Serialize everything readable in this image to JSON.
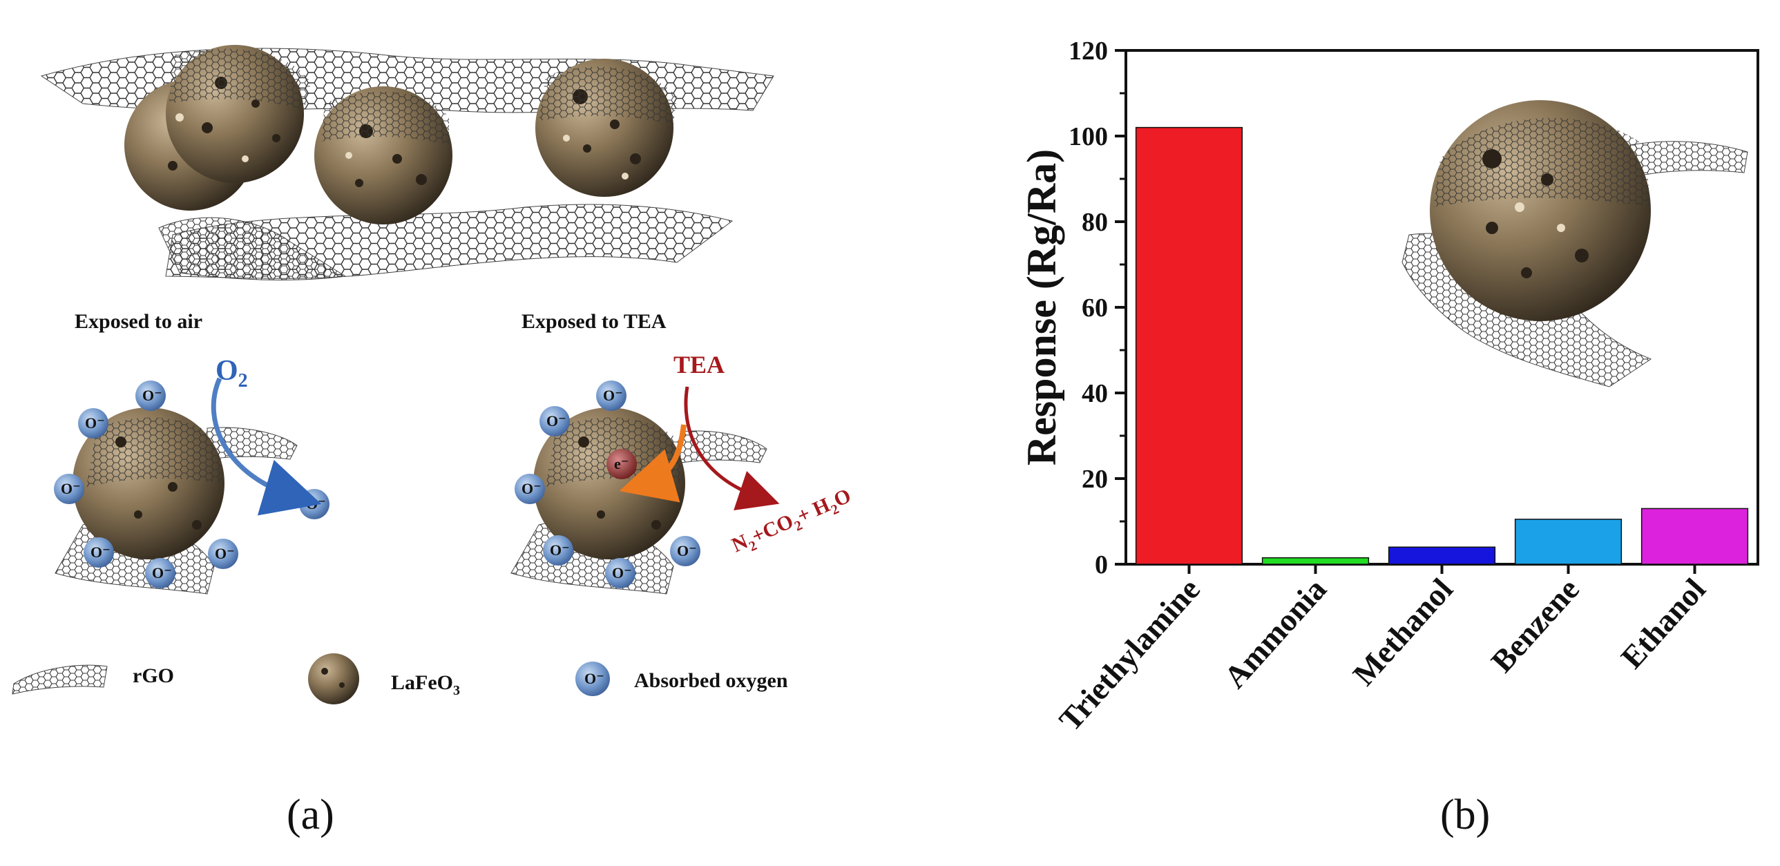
{
  "figure": {
    "panel_a_letter": "(a)",
    "panel_b_letter": "(b)"
  },
  "panel_a": {
    "exposed_air": "Exposed to air",
    "exposed_tea": "Exposed to TEA",
    "o2_label": "O",
    "o2_sub": "2",
    "tea_label": "TEA",
    "product_label": {
      "n": "N",
      "n_sub": "2",
      "plus_co": "+CO",
      "co_sub": "2",
      "plus_h": "+ H",
      "h_sub": "2",
      "o": "O"
    },
    "ion_label": "O⁻",
    "electron_label": "e⁻",
    "legend": {
      "rgo": "rGO",
      "lafeo": "LaFeO",
      "lafeo_sub": "3",
      "oxygen": "Absorbed oxygen"
    }
  },
  "colors": {
    "sphere_dark": "#3e3426",
    "sphere_light": "#c2ae8d",
    "ion_blue": "#6f95c9",
    "o2_blue": "#2f64b8",
    "tea_red": "#a5181c",
    "arrow_orange": "#ee7a1e",
    "electron_red": "#8e2b2b"
  },
  "chart_data": {
    "type": "bar",
    "categories": [
      "Triethylamine",
      "Ammonia",
      "Methanol",
      "Benzene",
      "Ethanol"
    ],
    "values": [
      102,
      1.5,
      4,
      10.5,
      13
    ],
    "colors": [
      "#ee1c24",
      "#22dd22",
      "#1515dd",
      "#1ba1e8",
      "#dd22dd"
    ],
    "ylabel": "Response (Rg/Ra)",
    "xlabel": "",
    "ylim": [
      0,
      120
    ],
    "yticks": [
      0,
      20,
      40,
      60,
      80,
      100,
      120
    ],
    "grid": false
  }
}
